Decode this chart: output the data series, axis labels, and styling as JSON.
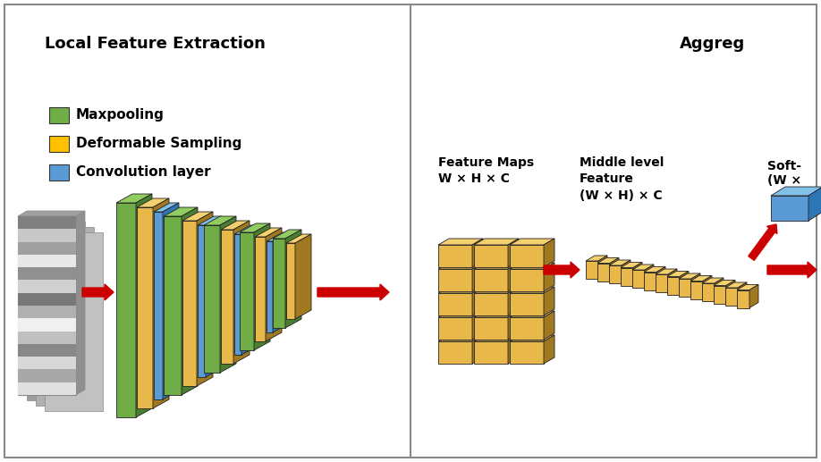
{
  "fig_width": 9.18,
  "fig_height": 5.17,
  "bg_color": "#ffffff",
  "border_color": "#888888",
  "left_title": "Local Feature Extraction",
  "right_title": "Aggreg",
  "legend_items": [
    {
      "color": "#5b9bd5",
      "label": "Convolution layer"
    },
    {
      "color": "#ffc000",
      "label": "Deformable Sampling"
    },
    {
      "color": "#70ad47",
      "label": "Maxpooling"
    }
  ],
  "arrow_color": "#cc0000",
  "text_color": "#000000",
  "feature_maps_label": "Feature Maps\nW × H × C",
  "middle_level_label": "Middle level\nFeature\n(W × H) × C",
  "soft_label": "Soft-\n(W ×",
  "col_green_face": "#70ad47",
  "col_green_top": "#90cc60",
  "col_green_side": "#4a7e30",
  "col_yellow_face": "#e8b84b",
  "col_yellow_top": "#f5d070",
  "col_yellow_side": "#a07820",
  "col_blue_face": "#5b9bd5",
  "col_blue_top": "#82c0e8",
  "col_blue_side": "#2e75b6",
  "col_gray_face": "#b0b0b0",
  "col_gray_top": "#d0d0d0",
  "col_gray_side": "#808080"
}
